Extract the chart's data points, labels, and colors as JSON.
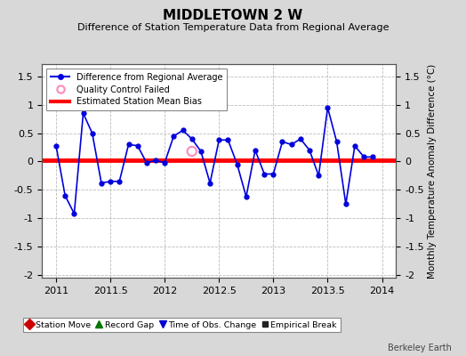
{
  "title": "MIDDLETOWN 2 W",
  "subtitle": "Difference of Station Temperature Data from Regional Average",
  "ylabel_right": "Monthly Temperature Anomaly Difference (°C)",
  "credit": "Berkeley Earth",
  "xlim": [
    2010.87,
    2014.13
  ],
  "ylim": [
    -2.05,
    1.72
  ],
  "yticks": [
    -2.0,
    -1.5,
    -1.0,
    -0.5,
    0.0,
    0.5,
    1.0,
    1.5
  ],
  "yticklabels": [
    "-2",
    "-1.5",
    "-1",
    "-0.5",
    "0",
    "0.5",
    "1",
    "1.5"
  ],
  "xticks": [
    2011,
    2011.5,
    2012,
    2012.5,
    2013,
    2013.5,
    2014
  ],
  "xticklabels": [
    "2011",
    "2011.5",
    "2012",
    "2012.5",
    "2013",
    "2013.5",
    "2014"
  ],
  "mean_bias": 0.02,
  "fig_bg_color": "#d8d8d8",
  "plot_bg_color": "#ffffff",
  "line_color": "#0000dd",
  "bias_color": "#ff0000",
  "qc_color": "#ff88bb",
  "data_x": [
    2011.0,
    2011.083,
    2011.167,
    2011.25,
    2011.333,
    2011.417,
    2011.5,
    2011.583,
    2011.667,
    2011.75,
    2011.833,
    2011.917,
    2012.0,
    2012.083,
    2012.167,
    2012.25,
    2012.333,
    2012.417,
    2012.5,
    2012.583,
    2012.667,
    2012.75,
    2012.833,
    2012.917,
    2013.0,
    2013.083,
    2013.167,
    2013.25,
    2013.333,
    2013.417,
    2013.5,
    2013.583,
    2013.667,
    2013.75,
    2013.833,
    2013.917
  ],
  "data_y": [
    0.28,
    -0.6,
    -0.92,
    0.85,
    0.5,
    -0.38,
    -0.35,
    -0.35,
    0.3,
    0.28,
    -0.02,
    0.02,
    -0.02,
    0.45,
    0.55,
    0.4,
    0.18,
    -0.38,
    0.38,
    0.38,
    -0.05,
    -0.62,
    0.2,
    -0.22,
    -0.22,
    0.35,
    0.3,
    0.4,
    0.2,
    -0.25,
    0.95,
    0.35,
    -0.75,
    0.28,
    0.08,
    0.08
  ],
  "qc_x": [
    2012.25
  ],
  "qc_y": [
    0.18
  ]
}
